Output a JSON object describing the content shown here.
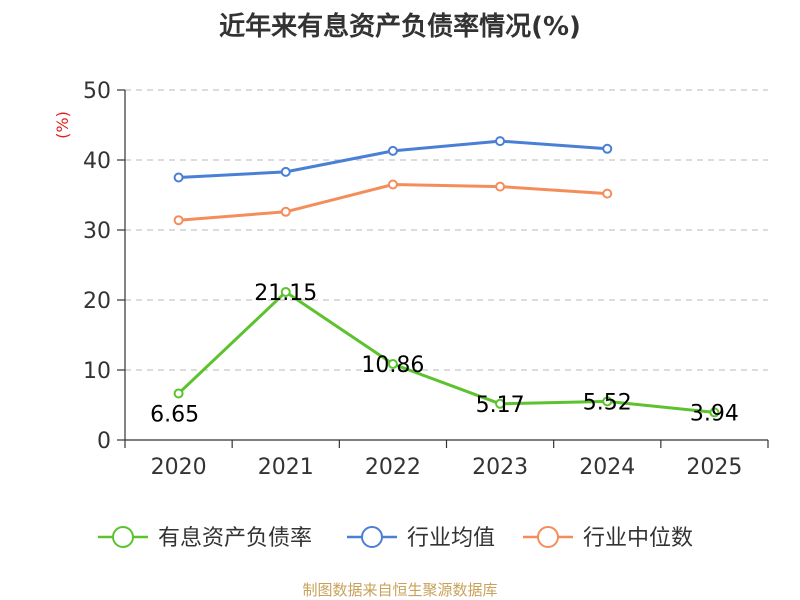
{
  "chart_data": {
    "type": "line",
    "title": "近年来有息资产负债率情况(%)",
    "ylabel": "(%)",
    "xlabel": "",
    "categories": [
      "2020",
      "2021",
      "2022",
      "2023",
      "2024",
      "2025"
    ],
    "ylim": [
      0,
      50
    ],
    "yticks": [
      0,
      10,
      20,
      30,
      40,
      50
    ],
    "grid": "horizontal-dashed",
    "legend_position": "bottom",
    "series": [
      {
        "name": "有息资产负债率",
        "color": "#5cc22e",
        "values": [
          6.65,
          21.15,
          10.86,
          5.17,
          5.52,
          3.94
        ],
        "data_labels": [
          "6.65",
          "21.15",
          "10.86",
          "5.17",
          "5.52",
          "3.94"
        ]
      },
      {
        "name": "行业均值",
        "color": "#4a7fd6",
        "values": [
          37.5,
          38.3,
          41.3,
          42.7,
          41.6,
          null
        ]
      },
      {
        "name": "行业中位数",
        "color": "#f58d5a",
        "values": [
          31.4,
          32.6,
          36.5,
          36.2,
          35.2,
          null
        ]
      }
    ]
  },
  "footer": {
    "source": "制图数据来自恒生聚源数据库"
  }
}
